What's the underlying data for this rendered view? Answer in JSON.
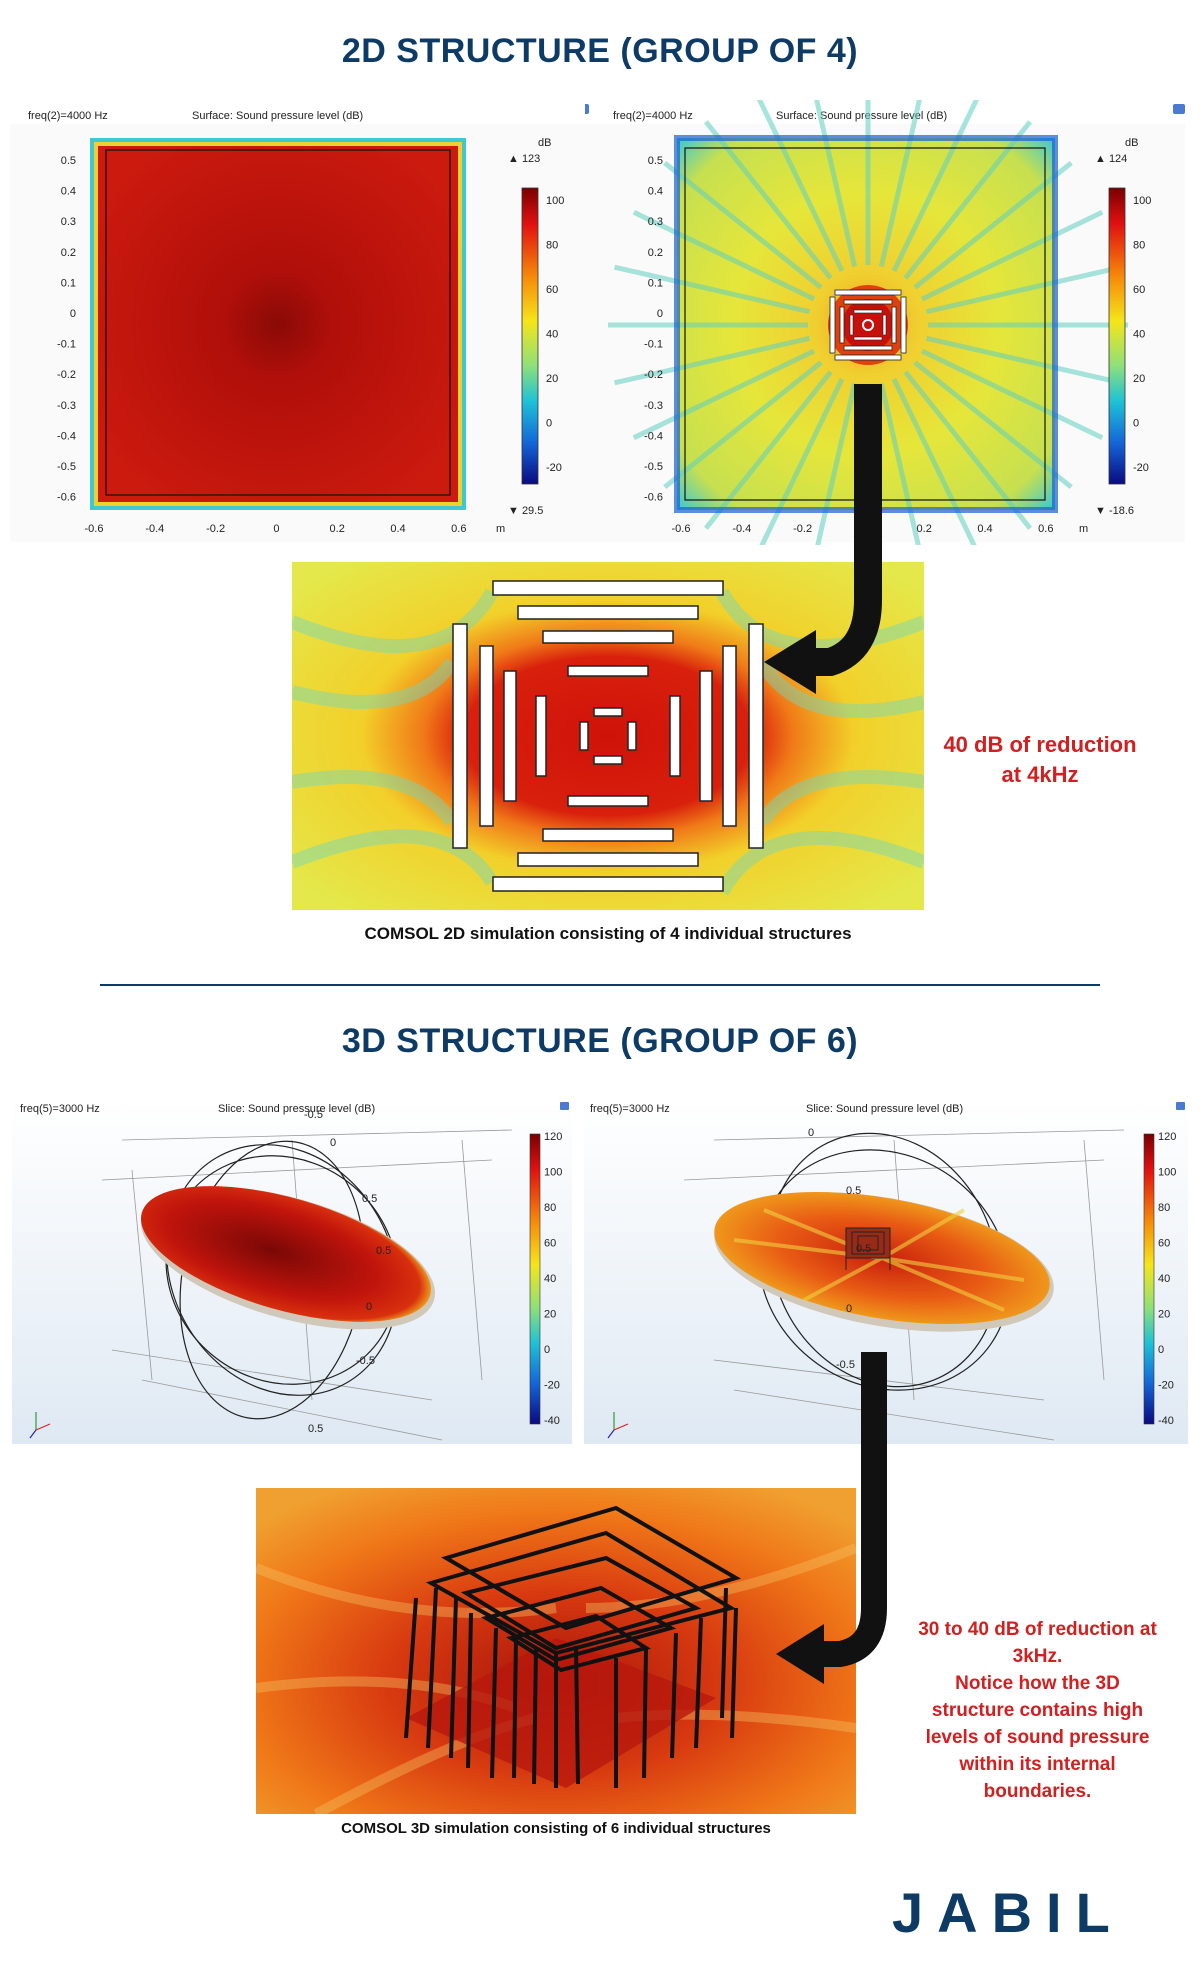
{
  "titles": {
    "section_2d": "2D STRUCTURE (GROUP OF 4)",
    "section_3d": "3D STRUCTURE (GROUP OF 6)"
  },
  "plot_2d_left": {
    "freq_label": "freq(2)=4000 Hz",
    "surface_label": "Surface: Sound pressure level (dB)",
    "axis_unit": "m",
    "cb_unit": "dB",
    "cb_max": "▲ 123",
    "cb_min": "▼ 29.5",
    "cb_ticks": [
      "100",
      "80",
      "60",
      "40",
      "20",
      "0",
      "-20"
    ],
    "y_ticks": [
      "0.5",
      "0.4",
      "0.3",
      "0.2",
      "0.1",
      "0",
      "-0.1",
      "-0.2",
      "-0.3",
      "-0.4",
      "-0.5",
      "-0.6"
    ],
    "x_ticks": [
      "-0.6",
      "-0.4",
      "-0.2",
      "0",
      "0.2",
      "0.4",
      "0.6"
    ]
  },
  "plot_2d_right": {
    "freq_label": "freq(2)=4000 Hz",
    "surface_label": "Surface: Sound pressure level (dB)",
    "axis_unit": "m",
    "cb_unit": "dB",
    "cb_max": "▲ 124",
    "cb_min": "▼ -18.6",
    "cb_ticks": [
      "100",
      "80",
      "60",
      "40",
      "20",
      "0",
      "-20"
    ],
    "y_ticks": [
      "0.5",
      "0.4",
      "0.3",
      "0.2",
      "0.1",
      "0",
      "-0.1",
      "-0.2",
      "-0.3",
      "-0.4",
      "-0.5",
      "-0.6"
    ],
    "x_ticks": [
      "-0.6",
      "-0.4",
      "-0.2",
      "0",
      "0.2",
      "0.4",
      "0.6"
    ]
  },
  "zoom_2d": {
    "callout": [
      "40 dB of reduction",
      "at 4kHz"
    ],
    "caption": "COMSOL 2D simulation consisting of 4 individual structures"
  },
  "plot_3d_left": {
    "freq_label": "freq(5)=3000 Hz",
    "slice_label": "Slice: Sound pressure level (dB)",
    "cb_ticks": [
      "120",
      "100",
      "80",
      "60",
      "40",
      "20",
      "0",
      "-20",
      "-40"
    ],
    "axis_labels": [
      "-0.5",
      "0",
      "0.5",
      "0.5",
      "0",
      "-0.5",
      "0.5"
    ],
    "unit": "m"
  },
  "plot_3d_right": {
    "freq_label": "freq(5)=3000 Hz",
    "slice_label": "Slice: Sound pressure level (dB)",
    "cb_ticks": [
      "120",
      "100",
      "80",
      "60",
      "40",
      "20",
      "0",
      "-20",
      "-40"
    ],
    "axis_labels": [
      "0",
      "0.5",
      "0.5",
      "0",
      "-0.5"
    ],
    "unit": "m"
  },
  "zoom_3d": {
    "callout": [
      "30 to 40 dB of reduction at",
      "3kHz.",
      "Notice how the 3D",
      "structure contains high",
      "levels of sound pressure",
      "within its internal",
      "boundaries."
    ],
    "caption": "COMSOL 3D simulation consisting of 6 individual structures"
  },
  "logo": {
    "text": "JABIL"
  },
  "colors": {
    "title_blue": "#0d3b66",
    "callout_red": "#d21f1f",
    "field_red": "#c8120c",
    "field_yellow": "#e8e63a"
  }
}
